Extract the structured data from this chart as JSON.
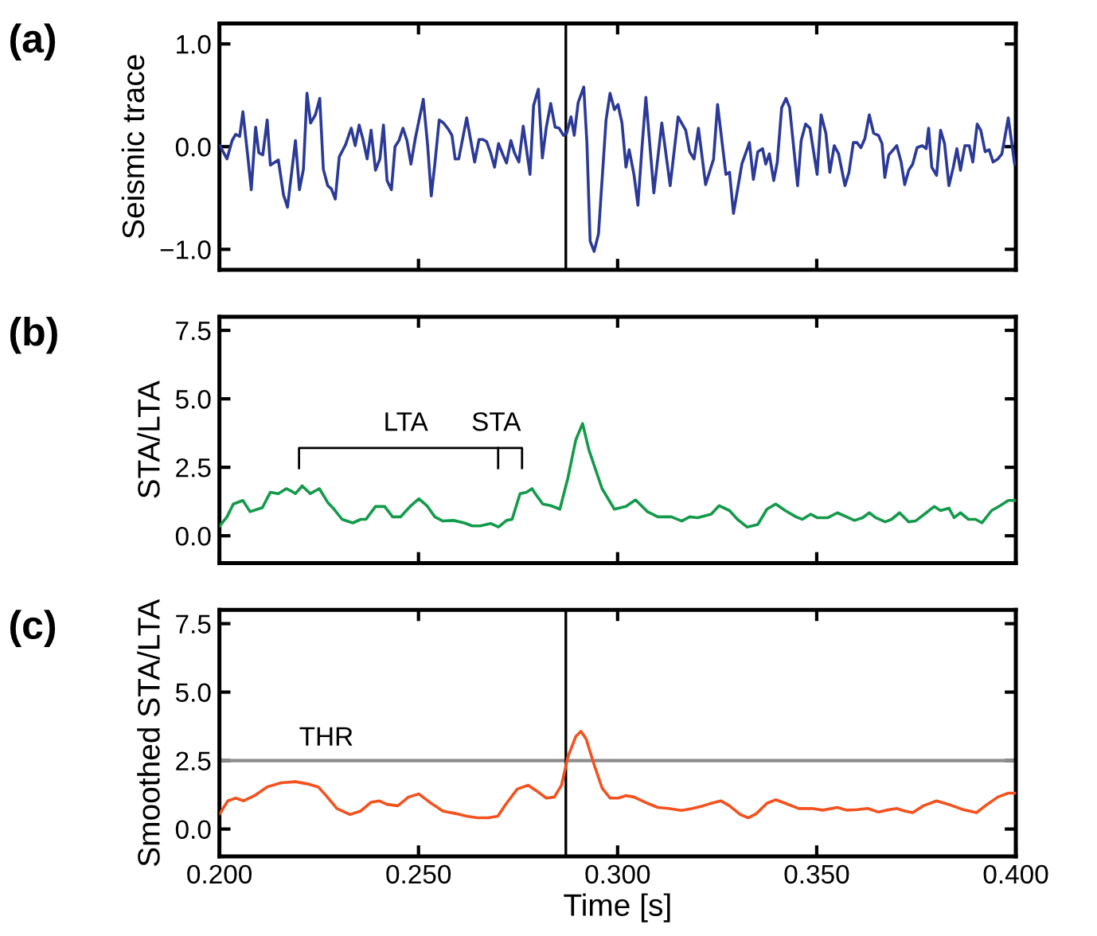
{
  "chart_data": [
    {
      "type": "line",
      "title": "(a)",
      "ylabel": "Seismic trace",
      "xlim": [
        0.2,
        0.4
      ],
      "ylim": [
        -1.2,
        1.2
      ],
      "xticks": [
        {
          "value": 0.2,
          "label": null
        },
        {
          "value": 0.25,
          "label": null
        },
        {
          "value": 0.3,
          "label": null
        },
        {
          "value": 0.35,
          "label": null
        },
        {
          "value": 0.4,
          "label": null
        }
      ],
      "yticks": [
        {
          "value": -1.0,
          "label": "−1.0"
        },
        {
          "value": 0.0,
          "label": "0.0"
        },
        {
          "value": 1.0,
          "label": "1.0"
        }
      ],
      "tick_labels": "y",
      "grid": false,
      "legend": false,
      "ref_lines": [
        {
          "axis": "x",
          "value": 0.287,
          "color": "#000000"
        }
      ],
      "series": [
        {
          "color": "#2b3a98",
          "x": [
            0.2001,
            0.2019,
            0.2032,
            0.2041,
            0.2051,
            0.2059,
            0.2072,
            0.208,
            0.2091,
            0.2099,
            0.2109,
            0.212,
            0.2128,
            0.2148,
            0.2161,
            0.2171,
            0.2191,
            0.2201,
            0.2211,
            0.222,
            0.2229,
            0.2241,
            0.2252,
            0.2261,
            0.2272,
            0.2281,
            0.2291,
            0.2301,
            0.2317,
            0.2331,
            0.2341,
            0.2351,
            0.236,
            0.2371,
            0.2381,
            0.2392,
            0.2403,
            0.2412,
            0.2421,
            0.2432,
            0.2441,
            0.2451,
            0.2461,
            0.2471,
            0.2481,
            0.2492,
            0.2512,
            0.2523,
            0.2532,
            0.2541,
            0.2552,
            0.2563,
            0.2575,
            0.2584,
            0.2592,
            0.2601,
            0.2621,
            0.2641,
            0.2652,
            0.2661,
            0.2671,
            0.2681,
            0.2691,
            0.2701,
            0.2711,
            0.2721,
            0.2732,
            0.2741,
            0.2752,
            0.2763,
            0.278,
            0.2789,
            0.2801,
            0.2811,
            0.2821,
            0.2832,
            0.2843,
            0.2853,
            0.2864,
            0.2872,
            0.2883,
            0.2891,
            0.2901,
            0.2915,
            0.2923,
            0.2931,
            0.2941,
            0.2952,
            0.2971,
            0.2981,
            0.2992,
            0.3001,
            0.3011,
            0.3021,
            0.3029,
            0.3041,
            0.3051,
            0.3061,
            0.3071,
            0.3091,
            0.3111,
            0.3132,
            0.3152,
            0.3171,
            0.3181,
            0.3192,
            0.3203,
            0.3221,
            0.3241,
            0.3251,
            0.3272,
            0.3281,
            0.3291,
            0.3312,
            0.3331,
            0.3341,
            0.3352,
            0.3364,
            0.3372,
            0.3381,
            0.3392,
            0.3401,
            0.3412,
            0.3423,
            0.3432,
            0.3452,
            0.3461,
            0.3472,
            0.3483,
            0.3501,
            0.3511,
            0.3523,
            0.3533,
            0.3544,
            0.3555,
            0.3571,
            0.3581,
            0.3592,
            0.3601,
            0.3611,
            0.3621,
            0.3632,
            0.3643,
            0.3655,
            0.3664,
            0.3671,
            0.3681,
            0.3701,
            0.3712,
            0.3721,
            0.3731,
            0.3741,
            0.3752,
            0.3765,
            0.3775,
            0.3781,
            0.3789,
            0.3801,
            0.3811,
            0.3821,
            0.3832,
            0.3843,
            0.3852,
            0.3861,
            0.3872,
            0.3883,
            0.3892,
            0.3903,
            0.3912,
            0.3923,
            0.3933,
            0.3943,
            0.3955,
            0.3965,
            0.3972,
            0.3981,
            0.3997
          ],
          "values": [
            0.01,
            -0.12,
            0.06,
            0.12,
            0.1,
            0.34,
            -0.12,
            -0.42,
            0.19,
            -0.06,
            -0.08,
            0.26,
            -0.18,
            -0.13,
            -0.47,
            -0.59,
            0.06,
            -0.42,
            -0.22,
            0.52,
            0.23,
            0.31,
            0.47,
            -0.22,
            -0.38,
            -0.41,
            -0.51,
            -0.1,
            0.02,
            0.18,
            0.01,
            0.21,
            0.08,
            -0.12,
            0.16,
            -0.23,
            -0.12,
            0.21,
            -0.33,
            -0.42,
            0.0,
            0.06,
            0.18,
            0.06,
            -0.17,
            0.08,
            0.46,
            0.01,
            -0.48,
            -0.17,
            0.26,
            0.23,
            0.17,
            0.11,
            -0.12,
            -0.12,
            0.28,
            -0.15,
            0.07,
            0.07,
            0.05,
            -0.06,
            -0.2,
            0.03,
            -0.07,
            -0.16,
            0.06,
            -0.06,
            -0.15,
            0.2,
            -0.27,
            0.4,
            0.56,
            -0.11,
            0.19,
            0.42,
            0.19,
            0.18,
            0.11,
            0.13,
            0.29,
            0.11,
            0.43,
            0.58,
            0.03,
            -0.92,
            -1.02,
            -0.85,
            0.26,
            0.52,
            0.36,
            0.41,
            0.23,
            -0.2,
            -0.03,
            -0.27,
            -0.57,
            -0.02,
            0.48,
            -0.45,
            0.23,
            -0.38,
            0.29,
            0.16,
            -0.05,
            -0.12,
            0.18,
            -0.37,
            -0.12,
            0.41,
            -0.27,
            -0.25,
            -0.65,
            -0.17,
            0.04,
            -0.32,
            -0.05,
            -0.02,
            -0.17,
            -0.07,
            -0.33,
            -0.15,
            0.38,
            0.47,
            0.38,
            -0.38,
            0.06,
            0.22,
            0.18,
            -0.27,
            0.31,
            0.13,
            -0.25,
            0.01,
            -0.07,
            -0.38,
            -0.25,
            0.04,
            0.04,
            -0.01,
            0.08,
            0.31,
            0.13,
            0.11,
            0.03,
            -0.3,
            -0.08,
            0.01,
            -0.15,
            -0.37,
            -0.23,
            -0.17,
            -0.01,
            0.01,
            -0.02,
            0.18,
            -0.2,
            -0.28,
            0.16,
            0.03,
            -0.38,
            -0.2,
            -0.02,
            -0.23,
            0.01,
            0.01,
            -0.15,
            0.22,
            0.16,
            -0.05,
            -0.03,
            -0.15,
            -0.12,
            -0.07,
            0.08,
            0.28,
            -0.17
          ]
        }
      ]
    },
    {
      "type": "line",
      "title": "(b)",
      "ylabel": "STA/LTA",
      "xlim": [
        0.2,
        0.4
      ],
      "ylim": [
        -1.0,
        8.0
      ],
      "xticks": [
        {
          "value": 0.2,
          "label": null
        },
        {
          "value": 0.25,
          "label": null
        },
        {
          "value": 0.3,
          "label": null
        },
        {
          "value": 0.35,
          "label": null
        },
        {
          "value": 0.4,
          "label": null
        }
      ],
      "yticks": [
        {
          "value": 0.0,
          "label": "0.0"
        },
        {
          "value": 2.5,
          "label": "2.5"
        },
        {
          "value": 5.0,
          "label": "5.0"
        },
        {
          "value": 7.5,
          "label": "7.5"
        }
      ],
      "tick_labels": "y",
      "grid": false,
      "legend": false,
      "annotations": [
        "LTA",
        "STA"
      ],
      "series": [
        {
          "color": "#139a4a",
          "x": [
            0.2001,
            0.2019,
            0.2035,
            0.2059,
            0.2077,
            0.2108,
            0.2128,
            0.2148,
            0.2168,
            0.2181,
            0.2191,
            0.2208,
            0.2228,
            0.2251,
            0.2272,
            0.2288,
            0.2308,
            0.2335,
            0.2355,
            0.2368,
            0.2392,
            0.2415,
            0.2435,
            0.2455,
            0.2481,
            0.2501,
            0.2521,
            0.2541,
            0.2561,
            0.2588,
            0.2615,
            0.2635,
            0.2655,
            0.2681,
            0.2701,
            0.2721,
            0.2735,
            0.2755,
            0.2771,
            0.2785,
            0.2795,
            0.2812,
            0.2832,
            0.2855,
            0.2875,
            0.2895,
            0.2912,
            0.2928,
            0.2961,
            0.2992,
            0.3021,
            0.3045,
            0.3075,
            0.3101,
            0.3135,
            0.3161,
            0.3181,
            0.3201,
            0.3235,
            0.3255,
            0.3281,
            0.3301,
            0.3325,
            0.3352,
            0.3375,
            0.3397,
            0.3421,
            0.3448,
            0.3464,
            0.3485,
            0.3501,
            0.3528,
            0.3552,
            0.3575,
            0.3595,
            0.3615,
            0.3632,
            0.3648,
            0.3672,
            0.3688,
            0.3708,
            0.3731,
            0.3748,
            0.3775,
            0.3795,
            0.3811,
            0.3832,
            0.3845,
            0.3861,
            0.3881,
            0.3899,
            0.3915,
            0.3939,
            0.3961,
            0.3981,
            0.3997
          ],
          "values": [
            0.36,
            0.69,
            1.16,
            1.29,
            0.88,
            1.03,
            1.59,
            1.54,
            1.72,
            1.63,
            1.54,
            1.82,
            1.54,
            1.72,
            1.22,
            0.97,
            0.6,
            0.47,
            0.6,
            0.6,
            1.07,
            1.07,
            0.69,
            0.69,
            1.1,
            1.35,
            1.1,
            0.69,
            0.54,
            0.56,
            0.47,
            0.36,
            0.36,
            0.45,
            0.32,
            0.56,
            0.6,
            1.54,
            1.59,
            1.72,
            1.5,
            1.16,
            1.1,
            0.97,
            2.1,
            3.5,
            4.1,
            3.13,
            1.72,
            0.97,
            1.07,
            1.31,
            0.88,
            0.69,
            0.69,
            0.54,
            0.69,
            0.66,
            0.79,
            1.1,
            0.92,
            0.6,
            0.32,
            0.41,
            0.97,
            1.16,
            0.92,
            0.69,
            0.6,
            0.79,
            0.66,
            0.66,
            0.84,
            0.69,
            0.56,
            0.66,
            0.84,
            0.66,
            0.51,
            0.6,
            0.84,
            0.51,
            0.54,
            0.84,
            1.07,
            0.92,
            1.01,
            0.66,
            0.84,
            0.6,
            0.6,
            0.47,
            0.92,
            1.1,
            1.29,
            1.29
          ]
        }
      ]
    },
    {
      "type": "line",
      "title": "(c)",
      "ylabel": "Smoothed STA/LTA",
      "xlabel": "Time [s]",
      "xlim": [
        0.2,
        0.4
      ],
      "ylim": [
        -1.0,
        8.0
      ],
      "xticks": [
        {
          "value": 0.2,
          "label": "0.200"
        },
        {
          "value": 0.25,
          "label": "0.250"
        },
        {
          "value": 0.3,
          "label": "0.300"
        },
        {
          "value": 0.35,
          "label": "0.350"
        },
        {
          "value": 0.4,
          "label": "0.400"
        }
      ],
      "yticks": [
        {
          "value": 0.0,
          "label": "0.0"
        },
        {
          "value": 2.5,
          "label": "2.5"
        },
        {
          "value": 5.0,
          "label": "5.0"
        },
        {
          "value": 7.5,
          "label": "7.5"
        }
      ],
      "grid": false,
      "legend": false,
      "ref_lines": [
        {
          "axis": "y",
          "value": 2.5,
          "label": "THR",
          "color": "#8c8c8c"
        },
        {
          "axis": "x",
          "value": 0.287,
          "color": "#000000"
        }
      ],
      "series": [
        {
          "color": "#f4511e",
          "x": [
            0.2001,
            0.2021,
            0.2041,
            0.2061,
            0.2088,
            0.212,
            0.2155,
            0.2191,
            0.2221,
            0.2248,
            0.2268,
            0.2295,
            0.2328,
            0.2355,
            0.2381,
            0.2401,
            0.2421,
            0.2448,
            0.2475,
            0.2501,
            0.2528,
            0.2561,
            0.2595,
            0.2621,
            0.2648,
            0.2675,
            0.2699,
            0.2721,
            0.2748,
            0.2775,
            0.2795,
            0.2821,
            0.2841,
            0.2859,
            0.2875,
            0.2895,
            0.2908,
            0.2921,
            0.2941,
            0.2961,
            0.2981,
            0.3001,
            0.3021,
            0.3041,
            0.3075,
            0.3101,
            0.3128,
            0.3161,
            0.3188,
            0.3215,
            0.3235,
            0.3259,
            0.3281,
            0.3308,
            0.3328,
            0.3348,
            0.3375,
            0.3397,
            0.3421,
            0.3455,
            0.3488,
            0.3515,
            0.3552,
            0.3575,
            0.3601,
            0.3628,
            0.3655,
            0.3675,
            0.3701,
            0.3721,
            0.3741,
            0.3768,
            0.3801,
            0.3835,
            0.3868,
            0.3901,
            0.3928,
            0.3955,
            0.3981,
            0.3997
          ],
          "values": [
            0.56,
            1.03,
            1.13,
            1.03,
            1.22,
            1.54,
            1.69,
            1.73,
            1.65,
            1.54,
            1.22,
            0.75,
            0.53,
            0.66,
            0.98,
            1.03,
            0.9,
            0.85,
            1.17,
            1.28,
            0.98,
            0.66,
            0.56,
            0.47,
            0.41,
            0.41,
            0.47,
            0.94,
            1.46,
            1.6,
            1.41,
            1.13,
            1.17,
            1.6,
            2.63,
            3.38,
            3.57,
            3.29,
            2.35,
            1.5,
            1.13,
            1.13,
            1.22,
            1.17,
            0.94,
            0.79,
            0.75,
            0.68,
            0.75,
            0.85,
            0.94,
            1.03,
            0.85,
            0.53,
            0.41,
            0.56,
            0.94,
            1.07,
            0.94,
            0.75,
            0.75,
            0.69,
            0.79,
            0.69,
            0.71,
            0.75,
            0.62,
            0.69,
            0.75,
            0.66,
            0.6,
            0.85,
            1.03,
            0.88,
            0.71,
            0.6,
            0.9,
            1.17,
            1.31,
            1.31
          ]
        }
      ]
    }
  ]
}
